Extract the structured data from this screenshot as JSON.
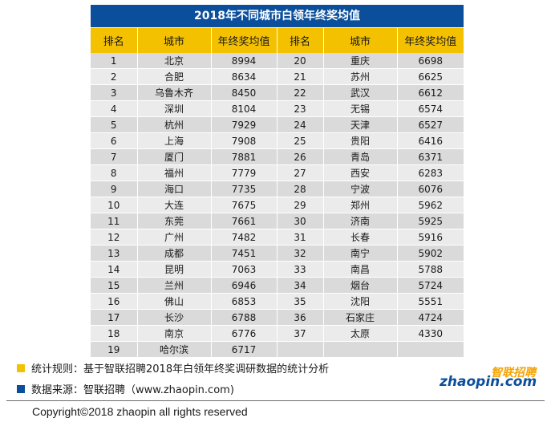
{
  "title": "2018年不同城市白领年终奖均值",
  "headers": [
    "排名",
    "城市",
    "年终奖均值",
    "排名",
    "城市",
    "年终奖均值"
  ],
  "rows": [
    [
      "1",
      "北京",
      "8994",
      "20",
      "重庆",
      "6698"
    ],
    [
      "2",
      "合肥",
      "8634",
      "21",
      "苏州",
      "6625"
    ],
    [
      "3",
      "乌鲁木齐",
      "8450",
      "22",
      "武汉",
      "6612"
    ],
    [
      "4",
      "深圳",
      "8104",
      "23",
      "无锡",
      "6574"
    ],
    [
      "5",
      "杭州",
      "7929",
      "24",
      "天津",
      "6527"
    ],
    [
      "6",
      "上海",
      "7908",
      "25",
      "贵阳",
      "6416"
    ],
    [
      "7",
      "厦门",
      "7881",
      "26",
      "青岛",
      "6371"
    ],
    [
      "8",
      "福州",
      "7779",
      "27",
      "西安",
      "6283"
    ],
    [
      "9",
      "海口",
      "7735",
      "28",
      "宁波",
      "6076"
    ],
    [
      "10",
      "大连",
      "7675",
      "29",
      "郑州",
      "5962"
    ],
    [
      "11",
      "东莞",
      "7661",
      "30",
      "济南",
      "5925"
    ],
    [
      "12",
      "广州",
      "7482",
      "31",
      "长春",
      "5916"
    ],
    [
      "13",
      "成都",
      "7451",
      "32",
      "南宁",
      "5902"
    ],
    [
      "14",
      "昆明",
      "7063",
      "33",
      "南昌",
      "5788"
    ],
    [
      "15",
      "兰州",
      "6946",
      "34",
      "烟台",
      "5724"
    ],
    [
      "16",
      "佛山",
      "6853",
      "35",
      "沈阳",
      "5551"
    ],
    [
      "17",
      "长沙",
      "6788",
      "36",
      "石家庄",
      "4724"
    ],
    [
      "18",
      "南京",
      "6776",
      "37",
      "太原",
      "4330"
    ],
    [
      "19",
      "哈尔滨",
      "6717",
      "",
      "",
      ""
    ]
  ],
  "legend": [
    {
      "text": "统计规则：基于智联招聘2018年白领年终奖调研数据的统计分析",
      "color": "#f4c100"
    },
    {
      "text": "数据来源：智联招聘（www.zhaopin.com)",
      "color": "#0b4f9c"
    }
  ],
  "logo": {
    "cn": "智联招聘",
    "en": "zhaopin.com"
  },
  "copyright": "Copyright©2018 zhaopin all rights reserved",
  "colors": {
    "title_bg": "#0b4f9c",
    "header_bg": "#f4c100",
    "row_odd": "#dadada",
    "row_even": "#ebebeb"
  },
  "chart_data": {
    "type": "table",
    "title": "2018年不同城市白领年终奖均值",
    "columns": [
      "排名",
      "城市",
      "年终奖均值"
    ],
    "records": [
      [
        1,
        "北京",
        8994
      ],
      [
        2,
        "合肥",
        8634
      ],
      [
        3,
        "乌鲁木齐",
        8450
      ],
      [
        4,
        "深圳",
        8104
      ],
      [
        5,
        "杭州",
        7929
      ],
      [
        6,
        "上海",
        7908
      ],
      [
        7,
        "厦门",
        7881
      ],
      [
        8,
        "福州",
        7779
      ],
      [
        9,
        "海口",
        7735
      ],
      [
        10,
        "大连",
        7675
      ],
      [
        11,
        "东莞",
        7661
      ],
      [
        12,
        "广州",
        7482
      ],
      [
        13,
        "成都",
        7451
      ],
      [
        14,
        "昆明",
        7063
      ],
      [
        15,
        "兰州",
        6946
      ],
      [
        16,
        "佛山",
        6853
      ],
      [
        17,
        "长沙",
        6788
      ],
      [
        18,
        "南京",
        6776
      ],
      [
        19,
        "哈尔滨",
        6717
      ],
      [
        20,
        "重庆",
        6698
      ],
      [
        21,
        "苏州",
        6625
      ],
      [
        22,
        "武汉",
        6612
      ],
      [
        23,
        "无锡",
        6574
      ],
      [
        24,
        "天津",
        6527
      ],
      [
        25,
        "贵阳",
        6416
      ],
      [
        26,
        "青岛",
        6371
      ],
      [
        27,
        "西安",
        6283
      ],
      [
        28,
        "宁波",
        6076
      ],
      [
        29,
        "郑州",
        5962
      ],
      [
        30,
        "济南",
        5925
      ],
      [
        31,
        "长春",
        5916
      ],
      [
        32,
        "南宁",
        5902
      ],
      [
        33,
        "南昌",
        5788
      ],
      [
        34,
        "烟台",
        5724
      ],
      [
        35,
        "沈阳",
        5551
      ],
      [
        36,
        "石家庄",
        4724
      ],
      [
        37,
        "太原",
        4330
      ]
    ]
  }
}
